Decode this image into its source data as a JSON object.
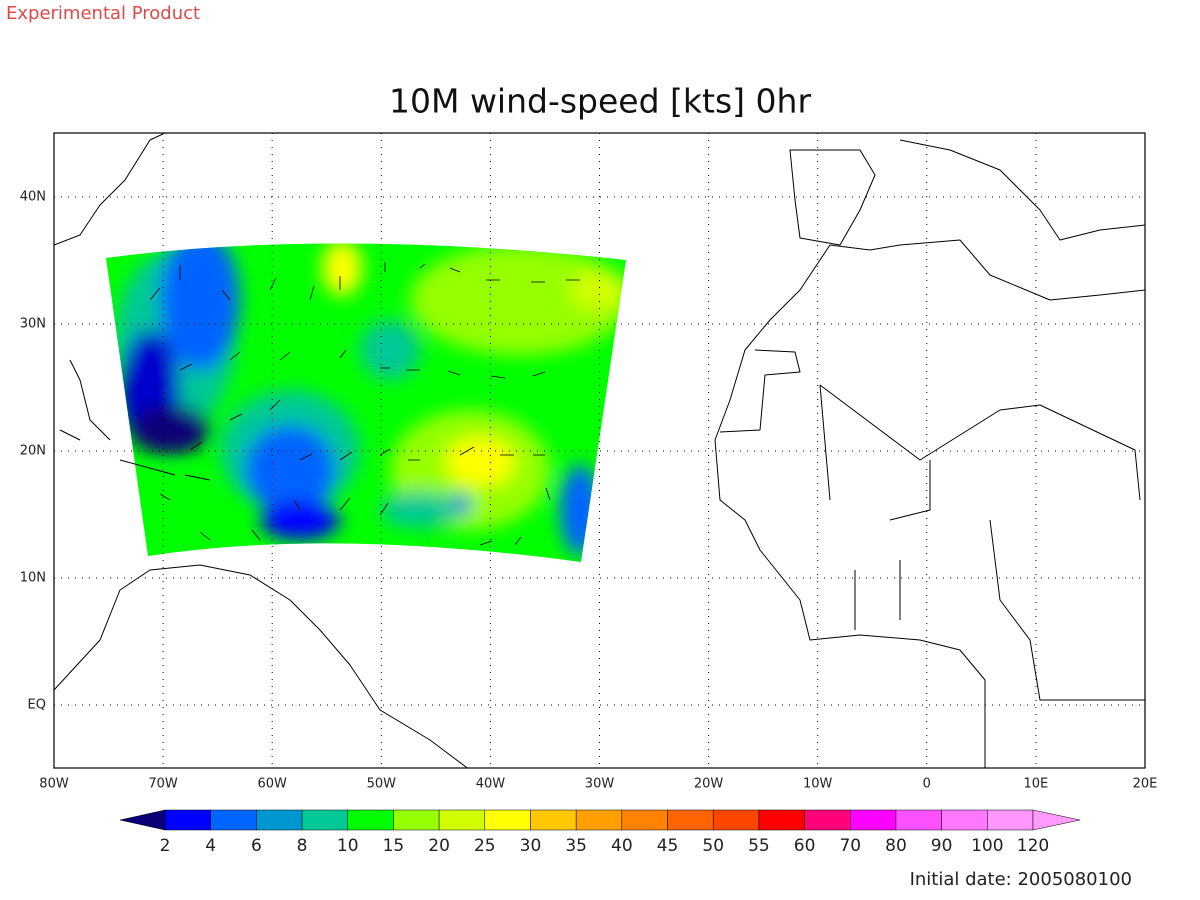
{
  "header": {
    "product": "Experimental Product",
    "title": "10M wind-speed [kts] 0hr"
  },
  "map": {
    "lon_labels": [
      "80W",
      "70W",
      "60W",
      "50W",
      "40W",
      "30W",
      "20W",
      "10W",
      "0",
      "10E",
      "20E"
    ],
    "lat_labels": [
      "40N",
      "30N",
      "20N",
      "10N",
      "EQ"
    ]
  },
  "colorbar": {
    "under": "#0a0078",
    "over": "#ff9bff",
    "colors": [
      "#0000ff",
      "#0064ff",
      "#0096d2",
      "#00c896",
      "#00ff00",
      "#96ff00",
      "#d2ff00",
      "#ffff00",
      "#ffc800",
      "#ffa000",
      "#ff8200",
      "#ff6400",
      "#ff4600",
      "#ff0000",
      "#ff0078",
      "#ff00ff",
      "#ff50ff",
      "#ff78ff",
      "#ff96ff"
    ],
    "labels": [
      2,
      4,
      6,
      8,
      10,
      15,
      20,
      25,
      30,
      35,
      40,
      45,
      50,
      55,
      60,
      70,
      80,
      90,
      100,
      120
    ]
  },
  "footer": {
    "initial_date": "Initial date: 2005080100"
  }
}
